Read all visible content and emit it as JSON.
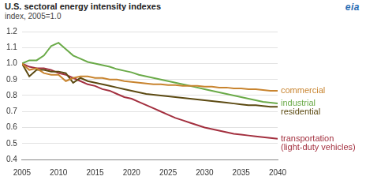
{
  "chart_data": {
    "type": "line",
    "title": "U.S. sectoral energy intensity indexes",
    "subtitle": "index, 2005=1.0",
    "annotations": [
      "eia"
    ],
    "x": [
      2005,
      2006,
      2007,
      2008,
      2009,
      2010,
      2011,
      2012,
      2013,
      2014,
      2015,
      2016,
      2017,
      2018,
      2019,
      2020,
      2021,
      2022,
      2023,
      2024,
      2025,
      2026,
      2027,
      2028,
      2029,
      2030,
      2031,
      2032,
      2033,
      2034,
      2035,
      2036,
      2037,
      2038,
      2039,
      2040
    ],
    "series": [
      {
        "name": "commercial",
        "color": "#c8842f",
        "values": [
          1.0,
          0.96,
          0.97,
          0.94,
          0.93,
          0.93,
          0.89,
          0.91,
          0.92,
          0.92,
          0.91,
          0.91,
          0.9,
          0.9,
          0.89,
          0.885,
          0.88,
          0.875,
          0.87,
          0.87,
          0.865,
          0.865,
          0.86,
          0.86,
          0.86,
          0.855,
          0.855,
          0.85,
          0.85,
          0.845,
          0.845,
          0.84,
          0.84,
          0.835,
          0.83,
          0.83
        ]
      },
      {
        "name": "industrial",
        "color": "#6aaa48",
        "values": [
          1.0,
          1.02,
          1.02,
          1.05,
          1.11,
          1.13,
          1.09,
          1.05,
          1.03,
          1.01,
          1.0,
          0.99,
          0.98,
          0.965,
          0.955,
          0.945,
          0.93,
          0.92,
          0.91,
          0.9,
          0.89,
          0.88,
          0.87,
          0.86,
          0.85,
          0.84,
          0.83,
          0.82,
          0.81,
          0.8,
          0.79,
          0.78,
          0.77,
          0.76,
          0.755,
          0.75
        ]
      },
      {
        "name": "residential",
        "color": "#5c4a12",
        "values": [
          1.0,
          0.92,
          0.96,
          0.96,
          0.95,
          0.95,
          0.94,
          0.88,
          0.91,
          0.89,
          0.88,
          0.87,
          0.86,
          0.85,
          0.84,
          0.83,
          0.82,
          0.81,
          0.805,
          0.8,
          0.795,
          0.79,
          0.785,
          0.78,
          0.775,
          0.77,
          0.765,
          0.76,
          0.755,
          0.75,
          0.745,
          0.74,
          0.74,
          0.735,
          0.73,
          0.73
        ]
      },
      {
        "name": "transportation (light-duty vehicles)",
        "color": "#a3303f",
        "values": [
          1.0,
          0.98,
          0.97,
          0.97,
          0.96,
          0.94,
          0.93,
          0.91,
          0.89,
          0.87,
          0.86,
          0.84,
          0.83,
          0.81,
          0.79,
          0.78,
          0.76,
          0.74,
          0.72,
          0.7,
          0.68,
          0.66,
          0.645,
          0.63,
          0.615,
          0.6,
          0.59,
          0.58,
          0.57,
          0.56,
          0.555,
          0.55,
          0.545,
          0.54,
          0.535,
          0.53
        ]
      }
    ],
    "xlim": [
      2005,
      2040
    ],
    "xticks": [
      2005,
      2010,
      2015,
      2020,
      2025,
      2030,
      2035,
      2040
    ],
    "ylim": [
      0.4,
      1.2
    ],
    "yticks": [
      0.4,
      0.5,
      0.6,
      0.7,
      0.8,
      0.9,
      {
        "value": 1,
        "label": "1.0"
      },
      1.1,
      1.2
    ],
    "grid": true
  }
}
